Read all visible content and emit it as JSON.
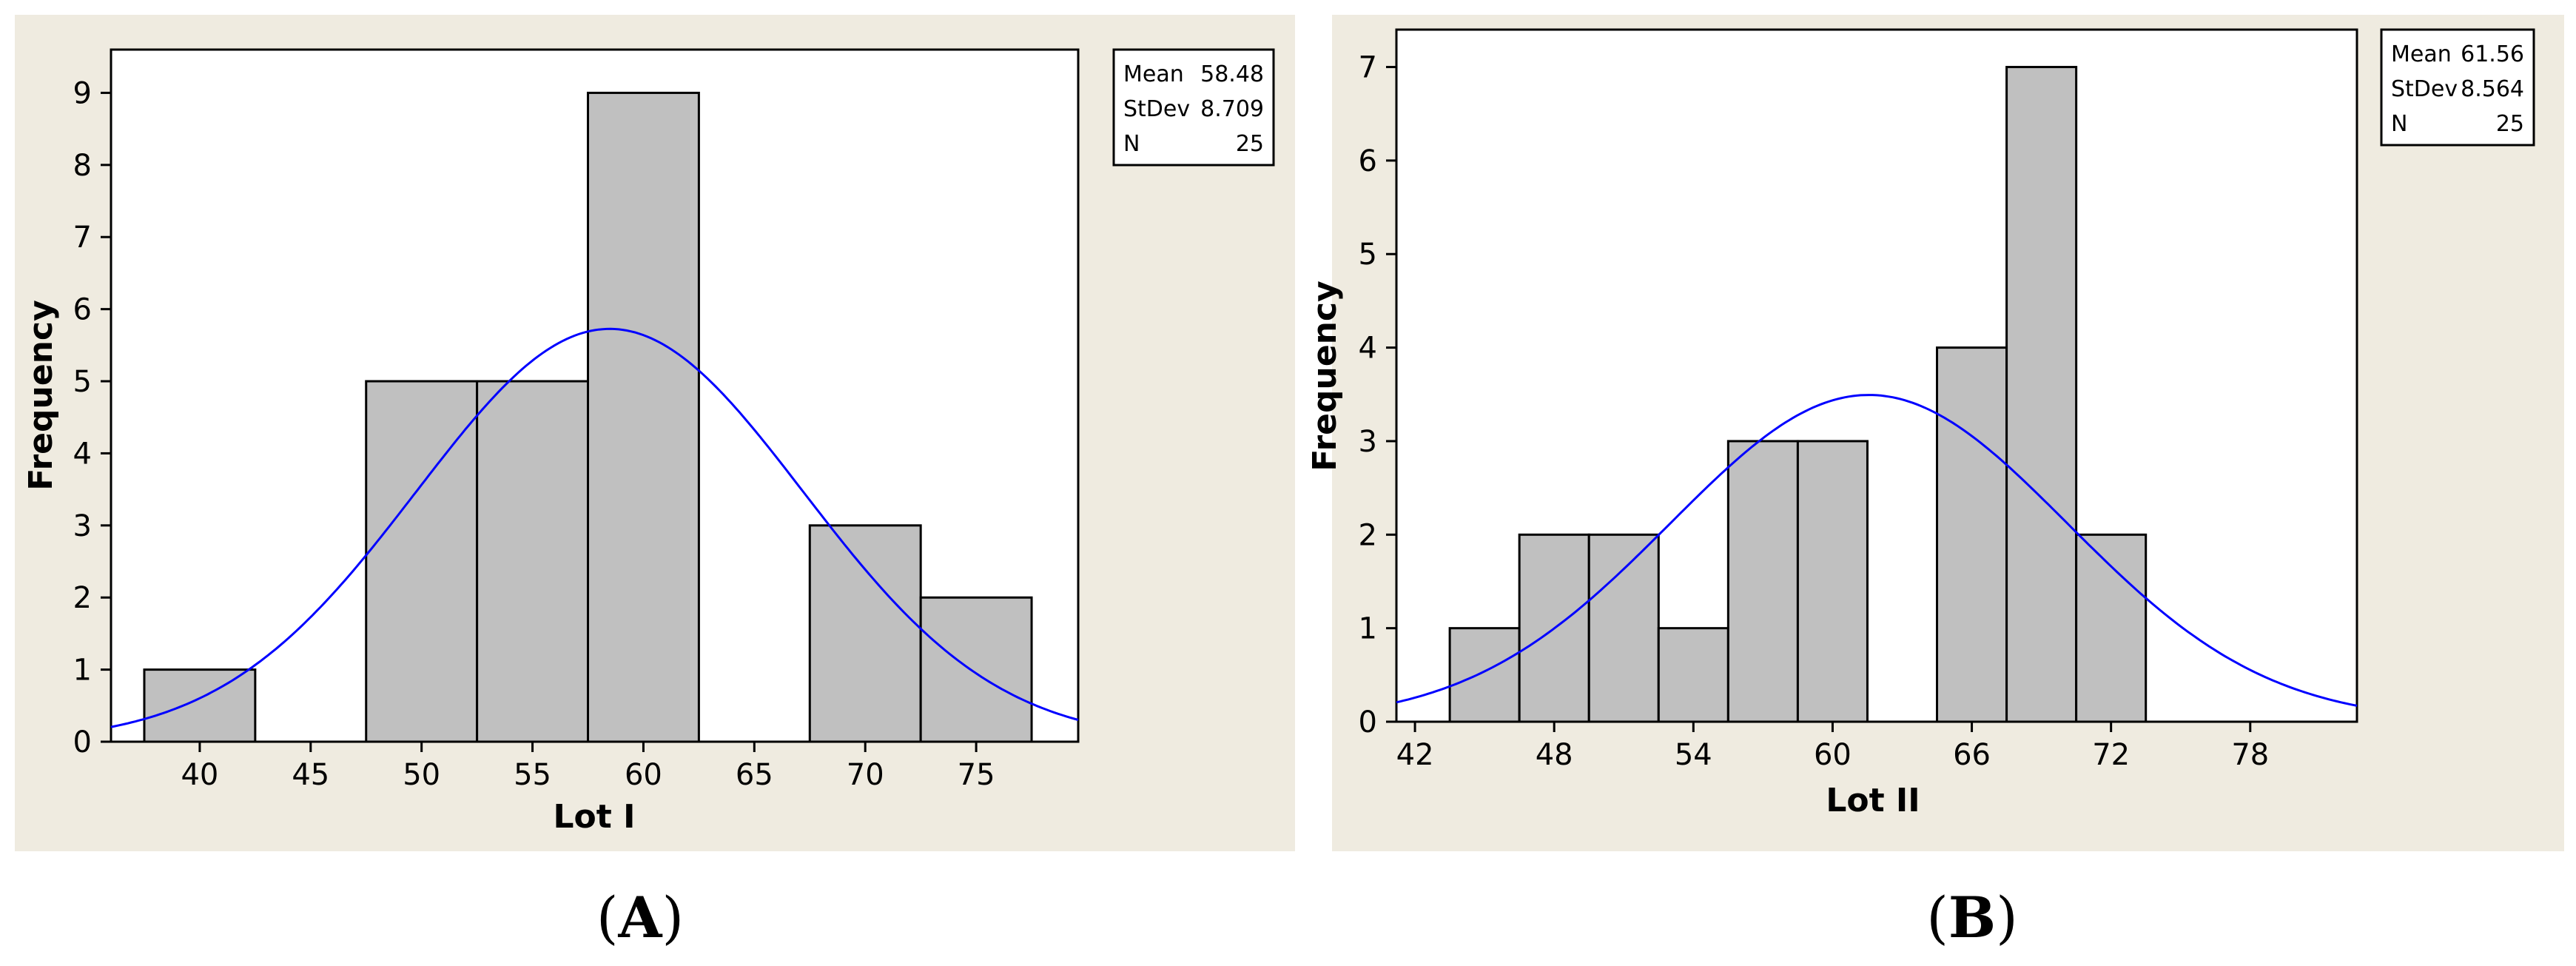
{
  "colors": {
    "panel_background": "#efebe0",
    "bar_fill": "#c0c0c0",
    "fit_curve": "#0000ff"
  },
  "chart_data": [
    {
      "type": "bar",
      "panel_label": "A",
      "xlabel": "Lot I",
      "ylabel": "Frequency",
      "bin_width": 5,
      "bins": [
        {
          "center": 40,
          "count": 1
        },
        {
          "center": 45,
          "count": 0
        },
        {
          "center": 50,
          "count": 5
        },
        {
          "center": 55,
          "count": 5
        },
        {
          "center": 60,
          "count": 9
        },
        {
          "center": 65,
          "count": 0
        },
        {
          "center": 70,
          "count": 3
        },
        {
          "center": 75,
          "count": 2
        }
      ],
      "xlim": [
        36,
        79.6
      ],
      "ylim": [
        0,
        9.6
      ],
      "x_ticks": [
        40,
        45,
        50,
        55,
        60,
        65,
        70,
        75
      ],
      "y_ticks": [
        0,
        1,
        2,
        3,
        4,
        5,
        6,
        7,
        8,
        9
      ],
      "fit": {
        "type": "normal",
        "mean": 58.48,
        "stdev": 8.709,
        "n": 25
      },
      "stats": [
        {
          "label": "Mean",
          "value": "58.48"
        },
        {
          "label": "StDev",
          "value": "8.709"
        },
        {
          "label": "N",
          "value": "25"
        }
      ],
      "grid": false,
      "legend": "top-right"
    },
    {
      "type": "bar",
      "panel_label": "B",
      "xlabel": "Lot II",
      "ylabel": "Frequency",
      "bin_width": 3,
      "bins": [
        {
          "center": 45,
          "count": 1
        },
        {
          "center": 48,
          "count": 2
        },
        {
          "center": 51,
          "count": 2
        },
        {
          "center": 54,
          "count": 1
        },
        {
          "center": 57,
          "count": 3
        },
        {
          "center": 60,
          "count": 3
        },
        {
          "center": 63,
          "count": 0
        },
        {
          "center": 66,
          "count": 4
        },
        {
          "center": 69,
          "count": 7
        },
        {
          "center": 72,
          "count": 2
        }
      ],
      "xlim": [
        41.2,
        82.6
      ],
      "ylim": [
        0,
        7.4
      ],
      "x_ticks": [
        42,
        48,
        54,
        60,
        66,
        72,
        78
      ],
      "y_ticks": [
        0,
        1,
        2,
        3,
        4,
        5,
        6,
        7
      ],
      "fit": {
        "type": "normal",
        "mean": 61.56,
        "stdev": 8.564,
        "n": 25
      },
      "stats": [
        {
          "label": "Mean",
          "value": "61.56"
        },
        {
          "label": "StDev",
          "value": "8.564"
        },
        {
          "label": "N",
          "value": "25"
        }
      ],
      "grid": false,
      "legend": "top-right"
    }
  ]
}
